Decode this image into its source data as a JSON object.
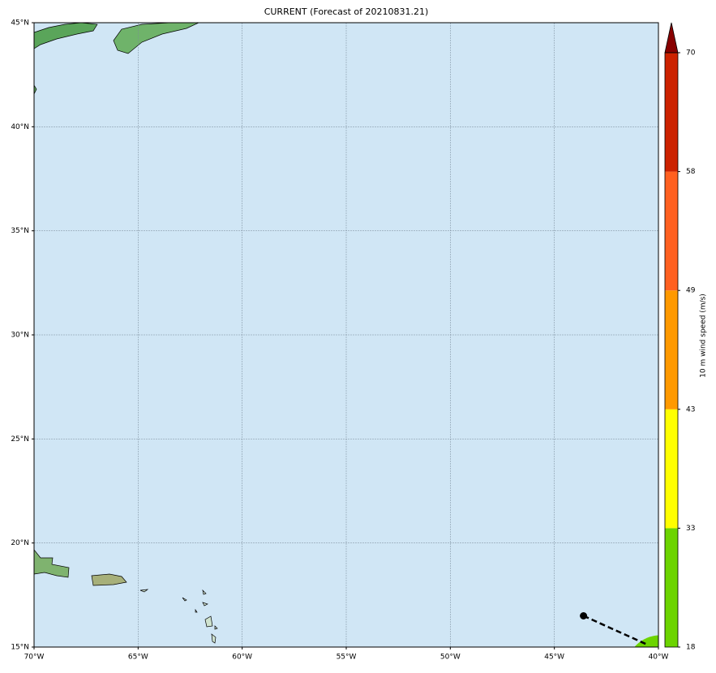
{
  "title": "CURRENT (Forecast of 20210831.21)",
  "map": {
    "lon_ticks": [
      {
        "value": -70,
        "label": "70°W"
      },
      {
        "value": -65,
        "label": "65°W"
      },
      {
        "value": -60,
        "label": "60°W"
      },
      {
        "value": -55,
        "label": "55°W"
      },
      {
        "value": -50,
        "label": "50°W"
      },
      {
        "value": -45,
        "label": "45°W"
      },
      {
        "value": -40,
        "label": "40°W"
      }
    ],
    "lat_ticks": [
      {
        "value": 15,
        "label": "15°N"
      },
      {
        "value": 20,
        "label": "20°N"
      },
      {
        "value": 25,
        "label": "25°N"
      },
      {
        "value": 30,
        "label": "30°N"
      },
      {
        "value": 35,
        "label": "35°N"
      },
      {
        "value": 40,
        "label": "40°N"
      },
      {
        "value": 45,
        "label": "45°N"
      }
    ],
    "track": {
      "lon": [
        -43.6,
        -40.5
      ],
      "lat": [
        16.5,
        15.1
      ]
    }
  },
  "colorbar": {
    "label": "10 m wind speed (m/s)",
    "ticks": [
      18,
      33,
      43,
      49,
      58,
      70
    ],
    "colors": [
      "#6cd400",
      "#ffff00",
      "#ff9900",
      "#ff6020",
      "#cc2200"
    ],
    "extend_color": "#880000"
  }
}
